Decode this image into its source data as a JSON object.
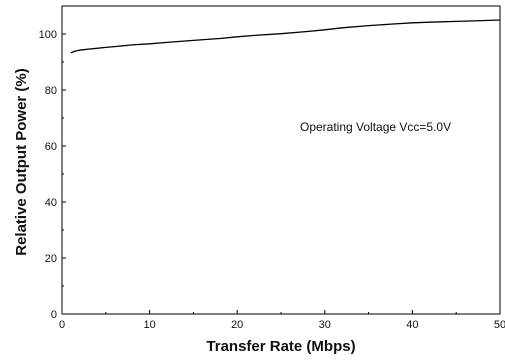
{
  "chart_data": {
    "type": "line",
    "xlabel": "Transfer Rate (Mbps)",
    "ylabel": "Relative Output Power (%)",
    "xlim": [
      0,
      50
    ],
    "ylim": [
      0,
      110
    ],
    "x_ticks": [
      0,
      10,
      20,
      30,
      40,
      50
    ],
    "x_tick_labels": [
      "0",
      "10",
      "20",
      "30",
      "40",
      "50"
    ],
    "y_ticks": [
      0,
      20,
      40,
      60,
      80,
      100
    ],
    "y_tick_labels": [
      "0",
      "20",
      "40",
      "60",
      "80",
      "100"
    ],
    "grid": false,
    "annotation": "Operating Voltage Vcc=5.0V",
    "series": [
      {
        "x": [
          1,
          1.5,
          2,
          3,
          4,
          5,
          6,
          8,
          10,
          12,
          15,
          18,
          20,
          22,
          25,
          28,
          30,
          32,
          35,
          38,
          40,
          42,
          45,
          48,
          50
        ],
        "y": [
          93.3,
          93.9,
          94.2,
          94.6,
          94.9,
          95.2,
          95.5,
          96.1,
          96.5,
          97.0,
          97.7,
          98.4,
          99.0,
          99.5,
          100.1,
          100.9,
          101.5,
          102.2,
          103.0,
          103.6,
          104.0,
          104.2,
          104.5,
          104.8,
          105.0
        ],
        "color": "#000000"
      }
    ]
  }
}
